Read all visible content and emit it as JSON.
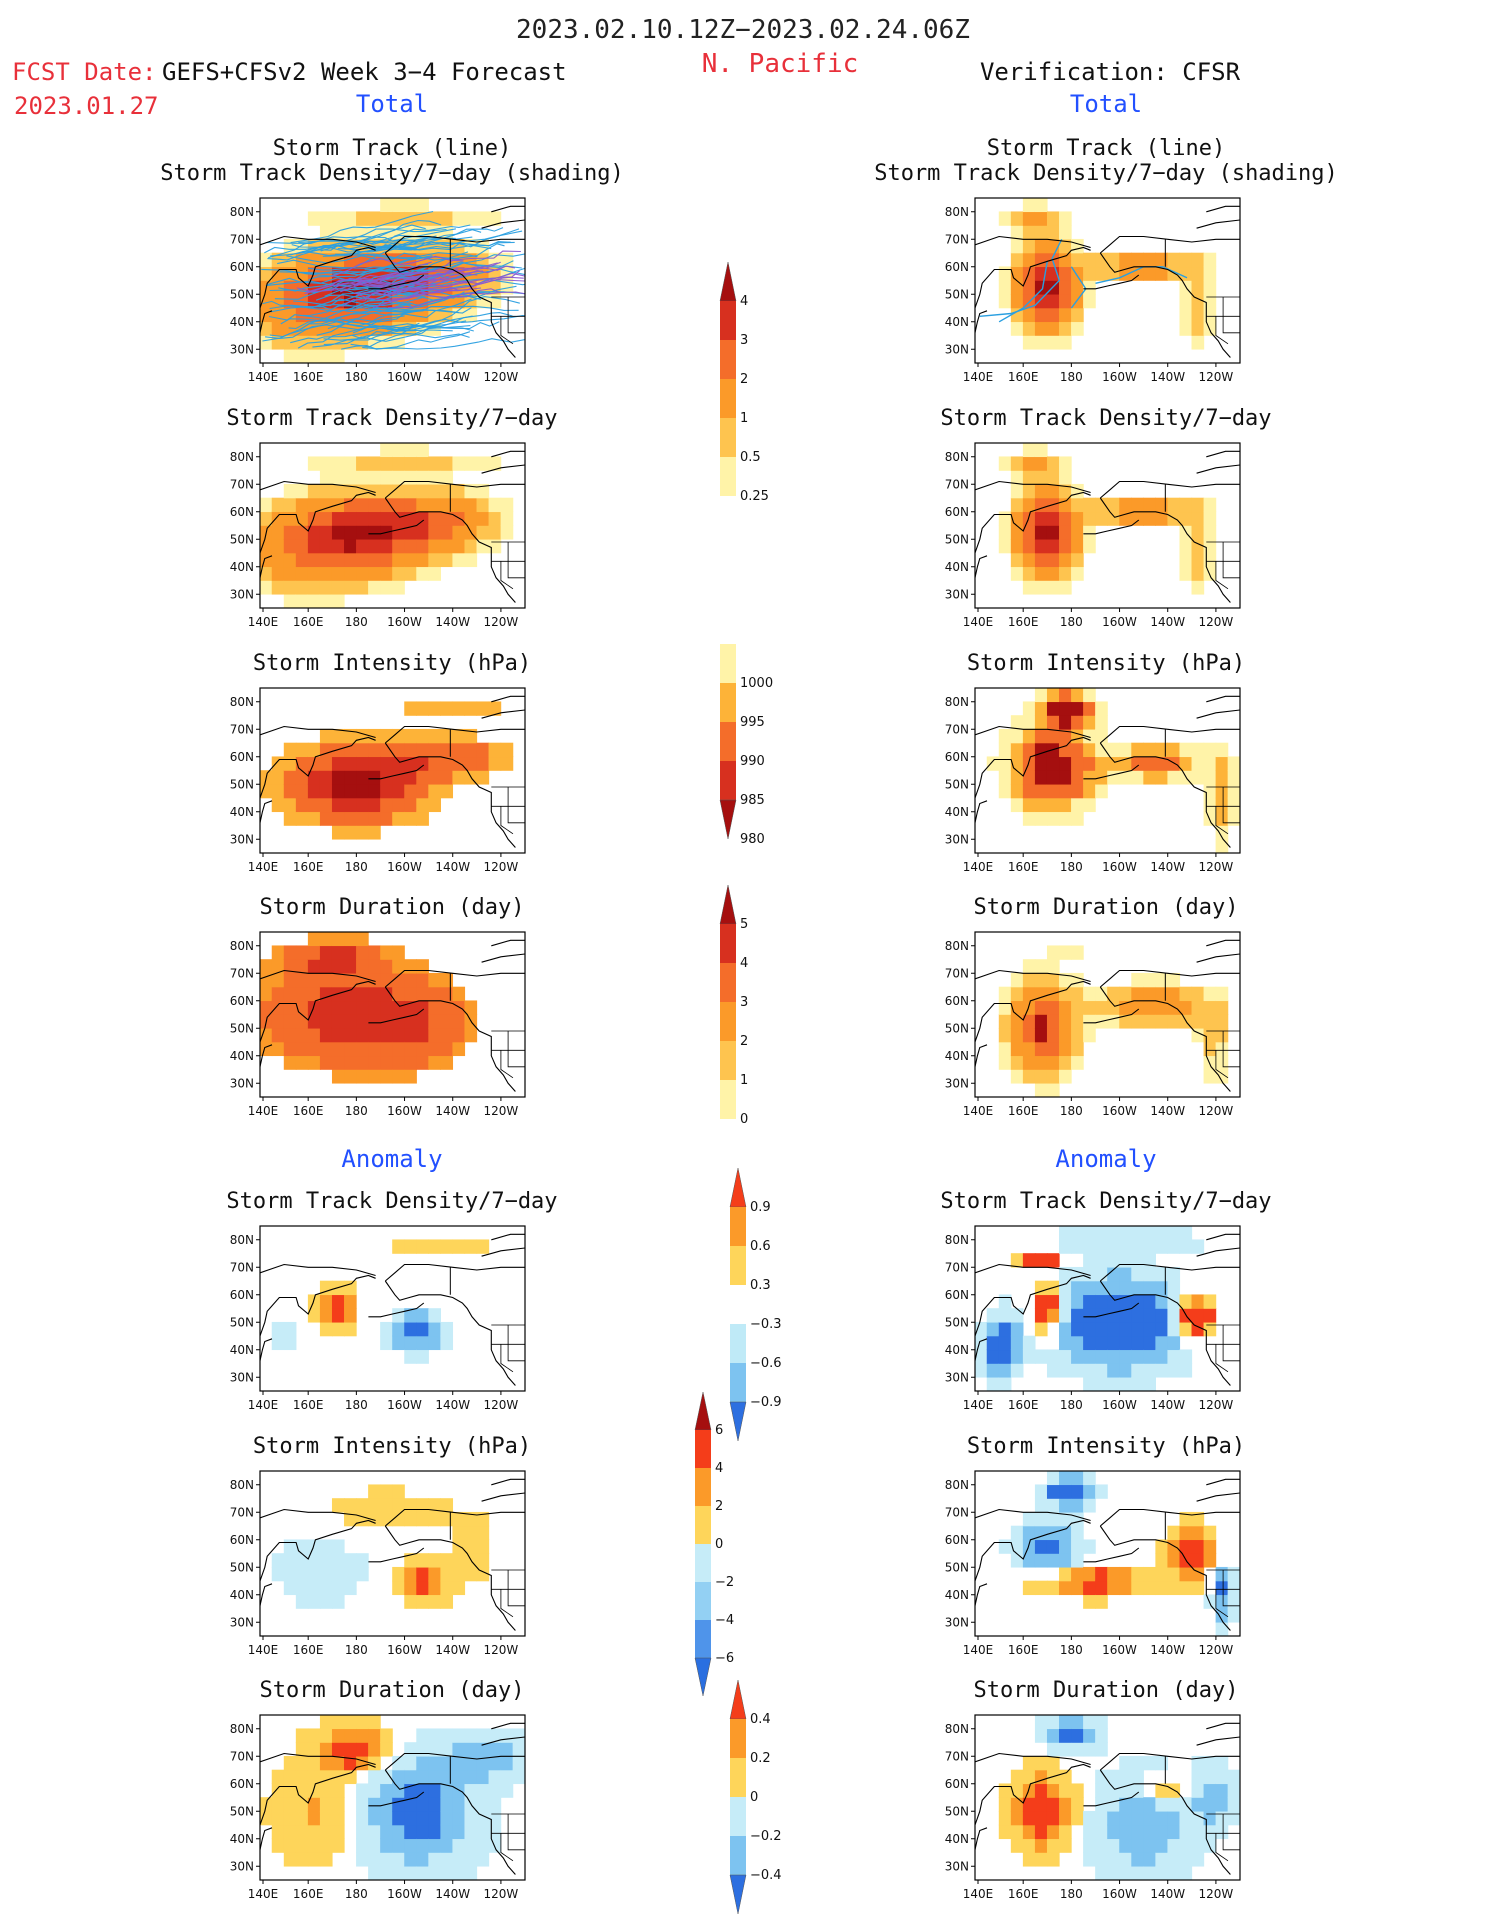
{
  "header": {
    "period": "2023.02.10.12Z−2023.02.24.06Z",
    "fcst_label": "FCST Date:",
    "fcst_date": "2023.01.27",
    "model": "GEFS+CFSv2 Week 3−4 Forecast",
    "region": "N. Pacific",
    "verification": "Verification: CFSR",
    "total_label": "Total",
    "anomaly_label": "Anomaly"
  },
  "colors": {
    "red_text": "#e8303a",
    "blue_text": "#2250ff",
    "track_line": "#2a9fe0",
    "land_line": "#000000"
  },
  "panel_titles": {
    "track_line": "Storm Track (line)",
    "track_shading": "Storm Track Density/7−day (shading)",
    "density": "Storm Track Density/7−day",
    "intensity": "Storm Intensity (hPa)",
    "duration": "Storm Duration (day)"
  },
  "axes": {
    "lat_ticks": [
      "80N",
      "70N",
      "60N",
      "50N",
      "40N",
      "30N"
    ],
    "lon_ticks": [
      "140E",
      "160E",
      "180",
      "160W",
      "140W",
      "120W"
    ]
  },
  "chart_data": [
    {
      "type": "heatmap",
      "id": "fcst-total-track",
      "title": "Storm Track (line) / Storm Track Density/7-day (shading)",
      "source": "GEFS+CFSv2",
      "colorbar": "density",
      "ylim": [
        "25N",
        "85N"
      ],
      "xlim": [
        "140E",
        "110W"
      ]
    },
    {
      "type": "heatmap",
      "id": "cfsr-total-track",
      "title": "Storm Track (line) / Storm Track Density/7-day (shading)",
      "source": "CFSR",
      "colorbar": "density"
    },
    {
      "type": "heatmap",
      "id": "fcst-total-density",
      "title": "Storm Track Density/7-day",
      "source": "GEFS+CFSv2",
      "colorbar": "density"
    },
    {
      "type": "heatmap",
      "id": "cfsr-total-density",
      "title": "Storm Track Density/7-day",
      "source": "CFSR",
      "colorbar": "density"
    },
    {
      "type": "heatmap",
      "id": "fcst-total-intensity",
      "title": "Storm Intensity (hPa)",
      "source": "GEFS+CFSv2",
      "colorbar": "intensity"
    },
    {
      "type": "heatmap",
      "id": "cfsr-total-intensity",
      "title": "Storm Intensity (hPa)",
      "source": "CFSR",
      "colorbar": "intensity"
    },
    {
      "type": "heatmap",
      "id": "fcst-total-duration",
      "title": "Storm Duration (day)",
      "source": "GEFS+CFSv2",
      "colorbar": "duration"
    },
    {
      "type": "heatmap",
      "id": "cfsr-total-duration",
      "title": "Storm Duration (day)",
      "source": "CFSR",
      "colorbar": "duration"
    },
    {
      "type": "heatmap",
      "id": "fcst-anom-density",
      "title": "Storm Track Density/7-day",
      "source": "GEFS+CFSv2",
      "colorbar": "density_anom"
    },
    {
      "type": "heatmap",
      "id": "cfsr-anom-density",
      "title": "Storm Track Density/7-day",
      "source": "CFSR",
      "colorbar": "density_anom"
    },
    {
      "type": "heatmap",
      "id": "fcst-anom-intensity",
      "title": "Storm Intensity (hPa)",
      "source": "GEFS+CFSv2",
      "colorbar": "intensity_anom"
    },
    {
      "type": "heatmap",
      "id": "cfsr-anom-intensity",
      "title": "Storm Intensity (hPa)",
      "source": "CFSR",
      "colorbar": "intensity_anom"
    },
    {
      "type": "heatmap",
      "id": "fcst-anom-duration",
      "title": "Storm Duration (day)",
      "source": "GEFS+CFSv2",
      "colorbar": "duration_anom"
    },
    {
      "type": "heatmap",
      "id": "cfsr-anom-duration",
      "title": "Storm Duration (day)",
      "source": "CFSR",
      "colorbar": "duration_anom"
    }
  ],
  "colorbars": {
    "density": {
      "labels": [
        "4",
        "3",
        "2",
        "1",
        "0.5",
        "0.25"
      ],
      "colors": [
        "#a50f0f",
        "#d7301f",
        "#f46d2a",
        "#fb9a29",
        "#fec44f",
        "#fff3a8"
      ]
    },
    "intensity": {
      "labels": [
        "1000",
        "995",
        "990",
        "985",
        "980"
      ],
      "colors": [
        "#fff3a8",
        "#fdb338",
        "#f46d2a",
        "#d7301f",
        "#a50f0f"
      ]
    },
    "duration": {
      "labels": [
        "5",
        "4",
        "3",
        "2",
        "1",
        "0"
      ],
      "colors": [
        "#a50f0f",
        "#d7301f",
        "#f46d2a",
        "#fb9a29",
        "#fec44f",
        "#fff3a8"
      ]
    },
    "density_anom": {
      "labels": [
        "0.9",
        "0.6",
        "0.3",
        "−0.3",
        "−0.6",
        "−0.9"
      ],
      "colors": [
        "#f43d1a",
        "#fb9a29",
        "#fed55a",
        "#ffffff",
        "#bfeaf7",
        "#7dc3f0",
        "#2d6fe0"
      ]
    },
    "intensity_anom": {
      "labels": [
        "6",
        "4",
        "2",
        "0",
        "−2",
        "−4",
        "−6"
      ],
      "colors": [
        "#a50f0f",
        "#f43d1a",
        "#fb9a29",
        "#fed55a",
        "#c6ecf8",
        "#93d0f3",
        "#4f94ea",
        "#2a6fe0"
      ]
    },
    "duration_anom": {
      "labels": [
        "0.4",
        "0.2",
        "0",
        "−0.2",
        "−0.4"
      ],
      "colors": [
        "#f43d1a",
        "#fb9a29",
        "#fed55a",
        "#c6ecf8",
        "#7dc3f0",
        "#2d6fe0"
      ]
    }
  }
}
